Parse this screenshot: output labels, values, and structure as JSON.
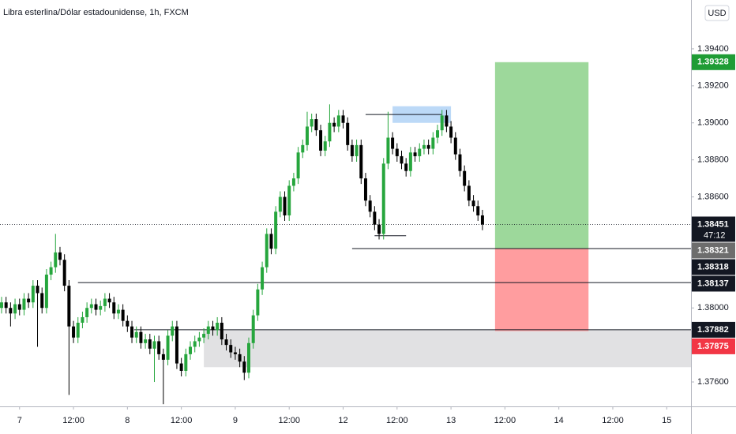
{
  "chart_data": {
    "type": "candlestick",
    "title": "Libra esterlina/Dólar estadounidense, 1h, FXCM",
    "currency": "USD",
    "countdown": "47:12",
    "up_color": "#26a63d",
    "down_color": "#000000",
    "xlim": [
      -0.35,
      153.4
    ],
    "xticks": [
      {
        "value": 4,
        "label": "7"
      },
      {
        "value": 16,
        "label": "12:00"
      },
      {
        "value": 28,
        "label": "8"
      },
      {
        "value": 40,
        "label": "12:00"
      },
      {
        "value": 52,
        "label": "9"
      },
      {
        "value": 64,
        "label": "12:00"
      },
      {
        "value": 76,
        "label": "12"
      },
      {
        "value": 88,
        "label": "12:00"
      },
      {
        "value": 100,
        "label": "13"
      },
      {
        "value": 112,
        "label": "12:00"
      },
      {
        "value": 124,
        "label": "14"
      },
      {
        "value": 136,
        "label": "12:00"
      },
      {
        "value": 148,
        "label": "15"
      }
    ],
    "ylim": [
      1.37468,
      1.39664
    ],
    "yticks": [
      {
        "value": 1.376,
        "label": "1.37600"
      },
      {
        "value": 1.378,
        "label": "1.37800"
      },
      {
        "value": 1.38,
        "label": "1.38000"
      },
      {
        "value": 1.382,
        "label": "1.38200"
      },
      {
        "value": 1.384,
        "label": "1.38400"
      },
      {
        "value": 1.386,
        "label": "1.38600"
      },
      {
        "value": 1.388,
        "label": "1.38800"
      },
      {
        "value": 1.39,
        "label": "1.39000"
      },
      {
        "value": 1.392,
        "label": "1.39200"
      },
      {
        "value": 1.394,
        "label": "1.39400"
      }
    ],
    "last_price": 1.38451,
    "ohlc": [
      [
        1.38,
        1.3806,
        1.3797,
        1.3803
      ],
      [
        1.3803,
        1.3806,
        1.3797,
        1.38
      ],
      [
        1.38,
        1.3803,
        1.379,
        1.3797
      ],
      [
        1.3797,
        1.3805,
        1.3794,
        1.3802
      ],
      [
        1.3802,
        1.3805,
        1.3796,
        1.3799
      ],
      [
        1.3799,
        1.3808,
        1.3796,
        1.3805
      ],
      [
        1.3805,
        1.3808,
        1.38,
        1.3803
      ],
      [
        1.3803,
        1.3815,
        1.38,
        1.3812
      ],
      [
        1.3812,
        1.3815,
        1.3779,
        1.3808
      ],
      [
        1.3808,
        1.3811,
        1.3797,
        1.38
      ],
      [
        1.38,
        1.3821,
        1.3797,
        1.3818
      ],
      [
        1.3818,
        1.3825,
        1.3815,
        1.3822
      ],
      [
        1.3822,
        1.384,
        1.3819,
        1.383
      ],
      [
        1.383,
        1.3833,
        1.3823,
        1.3826
      ],
      [
        1.3826,
        1.3829,
        1.3809,
        1.3812
      ],
      [
        1.3812,
        1.3815,
        1.3753,
        1.379
      ],
      [
        1.379,
        1.3793,
        1.3781,
        1.3784
      ],
      [
        1.3784,
        1.3795,
        1.3781,
        1.3792
      ],
      [
        1.3792,
        1.3798,
        1.3789,
        1.3795
      ],
      [
        1.3795,
        1.3803,
        1.3792,
        1.38
      ],
      [
        1.38,
        1.3805,
        1.3797,
        1.3802
      ],
      [
        1.3802,
        1.3805,
        1.3796,
        1.3799
      ],
      [
        1.3799,
        1.3804,
        1.3796,
        1.3801
      ],
      [
        1.3801,
        1.3808,
        1.3798,
        1.3805
      ],
      [
        1.3805,
        1.3808,
        1.38,
        1.3803
      ],
      [
        1.3803,
        1.3806,
        1.3794,
        1.3797
      ],
      [
        1.3797,
        1.3802,
        1.3794,
        1.3799
      ],
      [
        1.3799,
        1.3802,
        1.379,
        1.3793
      ],
      [
        1.3793,
        1.3796,
        1.3787,
        1.379
      ],
      [
        1.379,
        1.3793,
        1.3781,
        1.3784
      ],
      [
        1.3784,
        1.379,
        1.3781,
        1.3787
      ],
      [
        1.3787,
        1.379,
        1.3778,
        1.3781
      ],
      [
        1.3781,
        1.3786,
        1.3778,
        1.3783
      ],
      [
        1.3783,
        1.3786,
        1.3775,
        1.3778
      ],
      [
        1.3778,
        1.3785,
        1.376,
        1.3782
      ],
      [
        1.3782,
        1.3785,
        1.3772,
        1.3775
      ],
      [
        1.3775,
        1.3778,
        1.3748,
        1.3772
      ],
      [
        1.3772,
        1.3788,
        1.3769,
        1.3785
      ],
      [
        1.3785,
        1.3793,
        1.3782,
        1.379
      ],
      [
        1.379,
        1.3793,
        1.3767,
        1.377
      ],
      [
        1.377,
        1.3773,
        1.3763,
        1.3766
      ],
      [
        1.3766,
        1.3778,
        1.3763,
        1.3775
      ],
      [
        1.3775,
        1.3782,
        1.3772,
        1.3779
      ],
      [
        1.3779,
        1.3785,
        1.3776,
        1.3782
      ],
      [
        1.3782,
        1.3787,
        1.3779,
        1.3784
      ],
      [
        1.3784,
        1.3789,
        1.3781,
        1.3786
      ],
      [
        1.3786,
        1.3793,
        1.3783,
        1.379
      ],
      [
        1.379,
        1.3793,
        1.3785,
        1.3788
      ],
      [
        1.3788,
        1.3795,
        1.3785,
        1.3792
      ],
      [
        1.3792,
        1.3795,
        1.378,
        1.3783
      ],
      [
        1.3783,
        1.3786,
        1.3777,
        1.378
      ],
      [
        1.378,
        1.3783,
        1.3773,
        1.3776
      ],
      [
        1.3776,
        1.3779,
        1.3772,
        1.3775
      ],
      [
        1.3775,
        1.3778,
        1.3768,
        1.3771
      ],
      [
        1.3771,
        1.3774,
        1.3761,
        1.3765
      ],
      [
        1.3765,
        1.3784,
        1.3762,
        1.3781
      ],
      [
        1.3781,
        1.3799,
        1.3778,
        1.3796
      ],
      [
        1.3796,
        1.3813,
        1.3793,
        1.381
      ],
      [
        1.381,
        1.3825,
        1.3807,
        1.3822
      ],
      [
        1.3822,
        1.3843,
        1.3819,
        1.384
      ],
      [
        1.384,
        1.3843,
        1.3829,
        1.3832
      ],
      [
        1.3832,
        1.3855,
        1.3829,
        1.3852
      ],
      [
        1.3852,
        1.3863,
        1.3849,
        1.386
      ],
      [
        1.386,
        1.3863,
        1.3847,
        1.385
      ],
      [
        1.385,
        1.3869,
        1.3847,
        1.3866
      ],
      [
        1.3866,
        1.3873,
        1.3863,
        1.387
      ],
      [
        1.387,
        1.3887,
        1.3867,
        1.3884
      ],
      [
        1.3884,
        1.3891,
        1.3881,
        1.3888
      ],
      [
        1.3888,
        1.3906,
        1.3885,
        1.3898
      ],
      [
        1.3898,
        1.3905,
        1.3895,
        1.3902
      ],
      [
        1.3902,
        1.3905,
        1.3893,
        1.3896
      ],
      [
        1.3896,
        1.3899,
        1.3882,
        1.3885
      ],
      [
        1.3885,
        1.3893,
        1.3882,
        1.389
      ],
      [
        1.389,
        1.391,
        1.3887,
        1.39
      ],
      [
        1.39,
        1.3903,
        1.3895,
        1.3898
      ],
      [
        1.3898,
        1.3907,
        1.3895,
        1.3904
      ],
      [
        1.3904,
        1.3907,
        1.3897,
        1.39
      ],
      [
        1.39,
        1.3903,
        1.3885,
        1.3888
      ],
      [
        1.3888,
        1.3891,
        1.3879,
        1.3882
      ],
      [
        1.3882,
        1.3891,
        1.3879,
        1.3888
      ],
      [
        1.3888,
        1.3891,
        1.3867,
        1.387
      ],
      [
        1.387,
        1.3873,
        1.3855,
        1.3858
      ],
      [
        1.3858,
        1.3861,
        1.3849,
        1.3852
      ],
      [
        1.3852,
        1.3855,
        1.3842,
        1.3845
      ],
      [
        1.3845,
        1.3848,
        1.3837,
        1.384
      ],
      [
        1.384,
        1.3881,
        1.3837,
        1.3878
      ],
      [
        1.3878,
        1.3906,
        1.3875,
        1.3892
      ],
      [
        1.3892,
        1.3895,
        1.3883,
        1.3886
      ],
      [
        1.3886,
        1.3889,
        1.3879,
        1.3882
      ],
      [
        1.3882,
        1.3885,
        1.3875,
        1.3878
      ],
      [
        1.3878,
        1.3881,
        1.3871,
        1.3874
      ],
      [
        1.3874,
        1.3887,
        1.3871,
        1.3884
      ],
      [
        1.3884,
        1.3887,
        1.3879,
        1.3882
      ],
      [
        1.3882,
        1.3889,
        1.3879,
        1.3886
      ],
      [
        1.3886,
        1.3891,
        1.3883,
        1.3888
      ],
      [
        1.3888,
        1.3891,
        1.3883,
        1.3886
      ],
      [
        1.3886,
        1.3895,
        1.3883,
        1.3892
      ],
      [
        1.3892,
        1.3899,
        1.3889,
        1.3896
      ],
      [
        1.3896,
        1.3907,
        1.3893,
        1.3904
      ],
      [
        1.3904,
        1.3907,
        1.3895,
        1.3898
      ],
      [
        1.3898,
        1.3901,
        1.3889,
        1.3892
      ],
      [
        1.3892,
        1.3895,
        1.388,
        1.3883
      ],
      [
        1.3883,
        1.3886,
        1.3871,
        1.3874
      ],
      [
        1.3874,
        1.3877,
        1.3863,
        1.3866
      ],
      [
        1.3866,
        1.3869,
        1.3855,
        1.3858
      ],
      [
        1.3858,
        1.3861,
        1.3852,
        1.3855
      ],
      [
        1.3855,
        1.3858,
        1.3847,
        1.385
      ],
      [
        1.385,
        1.3853,
        1.3842,
        1.38451
      ]
    ],
    "zones": [
      {
        "low": 1.3768,
        "high": 1.37882,
        "start": 45,
        "end": 153.4,
        "color": "#e1e1e3"
      },
      {
        "low": 1.39,
        "high": 1.3909,
        "start": 87,
        "end": 100,
        "color": "#bcd9f7"
      }
    ],
    "levels": [
      {
        "value": 1.38137,
        "start": 17,
        "end": 153.4
      },
      {
        "value": 1.38321,
        "start": 78,
        "end": 153.4
      },
      {
        "value": 1.37882,
        "start": 29.5,
        "end": 153.4
      },
      {
        "value": 1.39045,
        "start": 81,
        "end": 98
      },
      {
        "value": 1.3839,
        "start": 83,
        "end": 90
      }
    ],
    "position": {
      "entry": 1.38321,
      "target": 1.39328,
      "stop": 1.37875,
      "start": 109.8,
      "end": 130.6,
      "target_color": "#9dd89b",
      "stop_color": "#ff9d9f"
    },
    "axis_labels": [
      {
        "value": 1.39328,
        "color": "#1f9c35"
      },
      {
        "value": 1.38451,
        "color": "#131722"
      },
      {
        "value": 1.38321,
        "color": "#6d6d6d"
      },
      {
        "value": 1.38318,
        "color": "#131722"
      },
      {
        "value": 1.38137,
        "color": "#131722"
      },
      {
        "value": 1.37882,
        "color": "#131722"
      },
      {
        "value": 1.37875,
        "color": "#f23645"
      }
    ]
  }
}
